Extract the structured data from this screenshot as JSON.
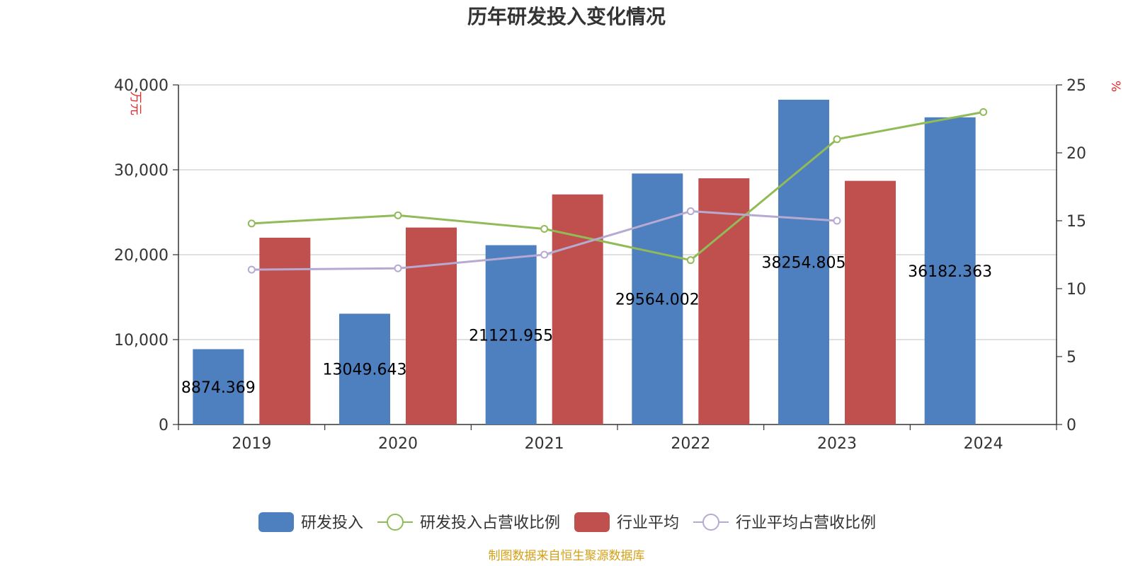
{
  "chart_data": {
    "type": "bar",
    "title": "历年研发投入变化情况",
    "categories": [
      "2019",
      "2020",
      "2021",
      "2022",
      "2023",
      "2024"
    ],
    "y_left": {
      "unit": "万元",
      "range": [
        0,
        40000
      ],
      "ticks": [
        "0",
        "10,000",
        "20,000",
        "30,000",
        "40,000"
      ],
      "tick_values": [
        0,
        10000,
        20000,
        30000,
        40000
      ]
    },
    "y_right": {
      "unit": "%",
      "range": [
        0,
        25
      ],
      "ticks": [
        "0",
        "5",
        "10",
        "15",
        "20",
        "25"
      ],
      "tick_values": [
        0,
        5,
        10,
        15,
        20,
        25
      ]
    },
    "series": [
      {
        "name": "研发投入",
        "kind": "bar",
        "axis": "left",
        "color": "#4e7fbe",
        "values": [
          8874.369,
          13049.643,
          21121.955,
          29564.002,
          38254.805,
          36182.363
        ],
        "labels": [
          "8874.369",
          "13049.643",
          "21121.955",
          "29564.002",
          "38254.805",
          "36182.363"
        ]
      },
      {
        "name": "研发投入占营收比例",
        "kind": "line",
        "axis": "right",
        "color": "#91bb57",
        "values": [
          14.8,
          15.4,
          14.4,
          12.1,
          21.0,
          23.0
        ]
      },
      {
        "name": "行业平均",
        "kind": "bar",
        "axis": "left",
        "color": "#c0504d",
        "values": [
          22000,
          23200,
          27100,
          29000,
          28700,
          null
        ]
      },
      {
        "name": "行业平均占营收比例",
        "kind": "line",
        "axis": "right",
        "color": "#b6a9d2",
        "values": [
          11.4,
          11.5,
          12.5,
          15.7,
          15.0,
          null
        ]
      }
    ],
    "grid": true,
    "legend_position": "bottom",
    "source": "制图数据来自恒生聚源数据库"
  }
}
